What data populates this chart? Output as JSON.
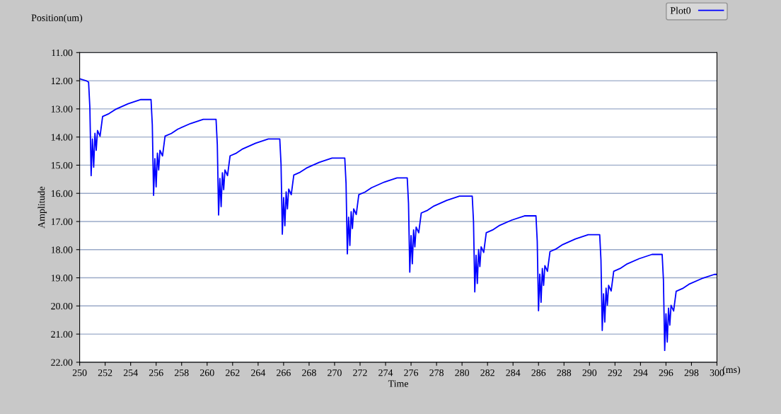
{
  "chart_data": {
    "type": "line",
    "title": "Position(um)",
    "xlabel": "Time",
    "ylabel": "Amplitude",
    "annotations": [
      "(ms)"
    ],
    "xlim": [
      250,
      300
    ],
    "xticks": [
      250,
      252,
      254,
      256,
      258,
      260,
      262,
      264,
      266,
      268,
      270,
      272,
      274,
      276,
      278,
      280,
      282,
      284,
      286,
      288,
      290,
      292,
      294,
      296,
      298,
      300
    ],
    "ylim": [
      22,
      11
    ],
    "yticks": [
      {
        "value": 11,
        "label": "11.00"
      },
      {
        "value": 12,
        "label": "12.00"
      },
      {
        "value": 13,
        "label": "13.00"
      },
      {
        "value": 14,
        "label": "14.00"
      },
      {
        "value": 15,
        "label": "15.00"
      },
      {
        "value": 16,
        "label": "16.00"
      },
      {
        "value": 17,
        "label": "17.00"
      },
      {
        "value": 18,
        "label": "18.00"
      },
      {
        "value": 19,
        "label": "19.00"
      },
      {
        "value": 20,
        "label": "20.00"
      },
      {
        "value": 21,
        "label": "21.00"
      },
      {
        "value": 22,
        "label": "22.00"
      }
    ],
    "grid": "y",
    "legend": "top right",
    "marker": "none",
    "line_style": "solid",
    "series": [
      {
        "name": "Plot0",
        "color": "#0000ff",
        "x": [
          250,
          250.5,
          250.7,
          250.8,
          250.9,
          251.0,
          251.1,
          251.2,
          251.3,
          251.4,
          251.6,
          251.8,
          252.3,
          252.8,
          253.8,
          254.8,
          255.6,
          255.7,
          255.8,
          255.9,
          256.0,
          256.1,
          256.2,
          256.3,
          256.5,
          256.7,
          257.2,
          257.7,
          258.7,
          259.7,
          260.7,
          260.8,
          260.9,
          261.0,
          261.1,
          261.2,
          261.3,
          261.4,
          261.6,
          261.8,
          262.3,
          262.8,
          263.8,
          264.8,
          265.7,
          265.8,
          265.9,
          266.0,
          266.1,
          266.2,
          266.3,
          266.4,
          266.6,
          266.8,
          267.3,
          267.8,
          268.8,
          269.8,
          270.8,
          270.9,
          271.0,
          271.1,
          271.2,
          271.3,
          271.4,
          271.5,
          271.7,
          271.9,
          272.4,
          272.9,
          273.9,
          274.9,
          275.7,
          275.8,
          275.9,
          276.0,
          276.1,
          276.2,
          276.3,
          276.4,
          276.6,
          276.8,
          277.3,
          277.8,
          278.8,
          279.8,
          280.8,
          280.9,
          281.0,
          281.1,
          281.2,
          281.3,
          281.4,
          281.5,
          281.7,
          281.9,
          282.4,
          282.9,
          283.9,
          284.9,
          285.8,
          285.9,
          286.0,
          286.1,
          286.2,
          286.3,
          286.4,
          286.5,
          286.7,
          286.9,
          287.4,
          287.9,
          288.9,
          289.9,
          290.8,
          290.9,
          291.0,
          291.1,
          291.2,
          291.3,
          291.4,
          291.5,
          291.7,
          291.9,
          292.4,
          292.9,
          293.9,
          294.9,
          295.7,
          295.8,
          295.9,
          296.0,
          296.1,
          296.2,
          296.3,
          296.4,
          296.6,
          296.8,
          297.3,
          297.8,
          298.8,
          299.8,
          300
        ],
        "values": [
          11.93,
          12.0,
          12.05,
          12.95,
          15.37,
          14.07,
          15.07,
          13.87,
          14.47,
          13.77,
          13.97,
          13.27,
          13.17,
          13.02,
          12.82,
          12.67,
          12.67,
          13.57,
          16.07,
          14.77,
          15.77,
          14.57,
          15.17,
          14.47,
          14.67,
          13.97,
          13.87,
          13.72,
          13.52,
          13.37,
          13.37,
          14.27,
          16.77,
          15.47,
          16.47,
          15.27,
          15.87,
          15.17,
          15.37,
          14.67,
          14.57,
          14.42,
          14.22,
          14.07,
          14.07,
          14.97,
          17.45,
          16.15,
          17.15,
          15.95,
          16.55,
          15.85,
          16.05,
          15.35,
          15.25,
          15.1,
          14.9,
          14.75,
          14.75,
          15.65,
          18.15,
          16.85,
          17.85,
          16.65,
          17.25,
          16.55,
          16.75,
          16.05,
          15.95,
          15.8,
          15.6,
          15.45,
          15.45,
          16.35,
          18.8,
          17.5,
          18.5,
          17.3,
          17.9,
          17.2,
          17.4,
          16.7,
          16.6,
          16.45,
          16.25,
          16.1,
          16.1,
          17.0,
          19.5,
          18.2,
          19.2,
          18.0,
          18.6,
          17.9,
          18.1,
          17.4,
          17.3,
          17.15,
          16.95,
          16.8,
          16.8,
          17.7,
          20.17,
          18.87,
          19.87,
          18.67,
          19.27,
          18.57,
          18.77,
          18.07,
          17.97,
          17.82,
          17.62,
          17.47,
          17.47,
          18.37,
          20.87,
          19.57,
          20.57,
          19.37,
          19.97,
          19.27,
          19.47,
          18.77,
          18.67,
          18.52,
          18.32,
          18.17,
          18.17,
          19.07,
          21.58,
          20.28,
          21.28,
          20.08,
          20.68,
          19.98,
          20.18,
          19.48,
          19.38,
          19.23,
          19.03,
          18.88,
          18.88
        ]
      }
    ]
  }
}
